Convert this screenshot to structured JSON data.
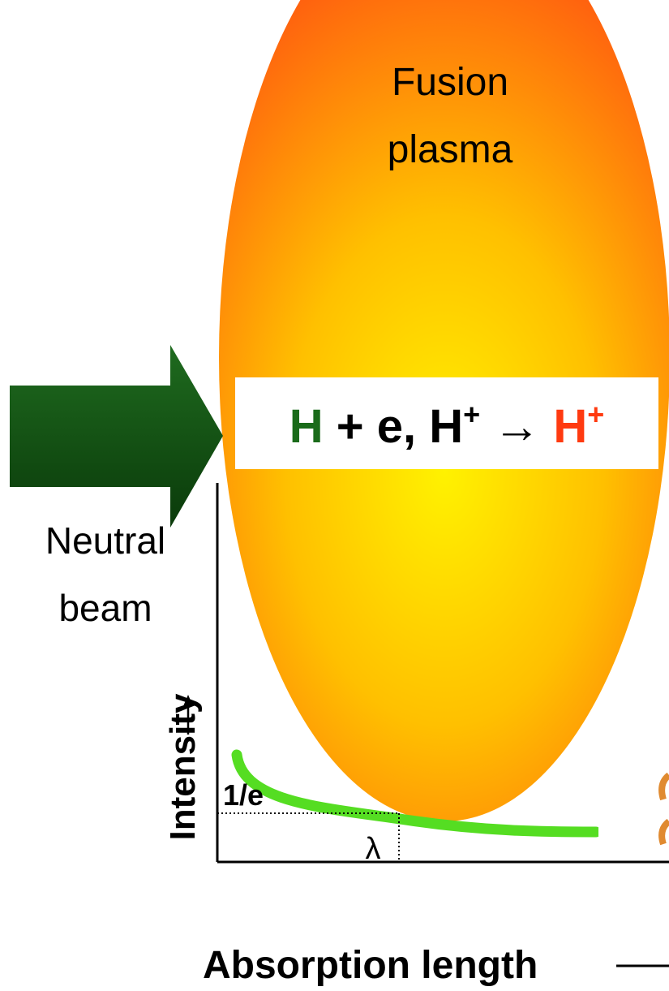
{
  "plasma_label": [
    "Fusion",
    "plasma"
  ],
  "reaction": [
    "H",
    " + e, H",
    "+",
    " → ",
    "H",
    "+"
  ],
  "beam_label": [
    "Neutral",
    "beam"
  ],
  "plot": {
    "y_axis_label": "Intensity",
    "x_axis_label": "Absorption length",
    "level_label": "1/e",
    "length_label": "λ"
  }
}
